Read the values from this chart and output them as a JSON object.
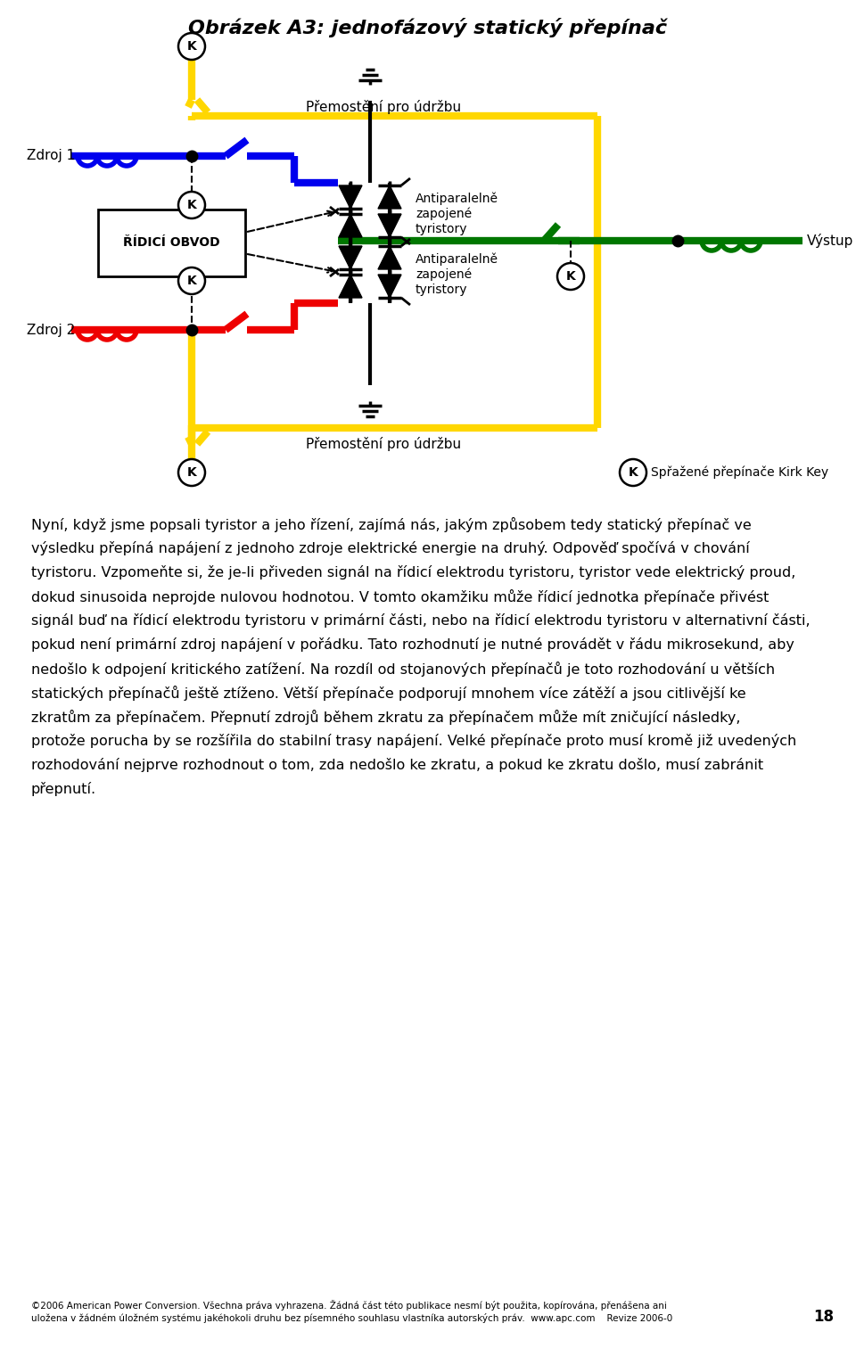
{
  "title": "Obrázek A3: jednofázový statický přepínač",
  "background_color": "#ffffff",
  "fig_width": 9.6,
  "fig_height": 15.12,
  "para_lines": [
    "Nyní, když jsme popsali tyristor a jeho řízení, zajímá nás, jakým způsobem tedy statický přepínač ve",
    "výsledku přepíná napájení z jednoho zdroje elektrické energie na druhý. Odpověď spočívá v chování",
    "tyristoru. Vzpomeňte si, že je-li přiveden signál na řídicí elektrodu tyristoru, tyristor vede elektrický proud,",
    "dokud sinusoida neprojde nulovou hodnotou. V tomto okamžiku může řídicí jednotka přepínače přivést",
    "signál buď na řídicí elektrodu tyristoru v primární části, nebo na řídicí elektrodu tyristoru v alternativní části,",
    "pokud není primární zdroj napájení v pořádku. Tato rozhodnutí je nutné provádět v řádu mikrosekund, aby",
    "nedošlo k odpojení kritického zatížení. Na rozdíl od stojanových přepínačů je toto rozhodování u větších",
    "statických přepínačů ještě ztíženo. Větší přepínače podporují mnohem více zátěží a jsou citlivější ke",
    "zkratům za přepínačem. Přepnutí zdrojů během zkratu za přepínačem může mít zničující následky,",
    "protože porucha by se rozšířila do stabilní trasy napájení. Velké přepínače proto musí kromě již uvedených",
    "rozhodování nejprve rozhodnout o tom, zda nedošlo ke zkratu, a pokud ke zkratu došlo, musí zabránit",
    "přepnutí."
  ],
  "footer_line1": "©2006 American Power Conversion. Všechna práva vyhrazena. Žádná část této publikace nesmí být použita, kopírována, přenášena ani",
  "footer_line2": "uložena v žádném úložném systému jakéhokoli druhu bez písemného souhlasu vlastníka autorských práv.  www.apc.com    Revize 2006-0",
  "page_number": "18",
  "colors": {
    "blue": "#0000EE",
    "red": "#EE0000",
    "green": "#007700",
    "yellow": "#FFD700",
    "black": "#000000",
    "white": "#FFFFFF"
  }
}
